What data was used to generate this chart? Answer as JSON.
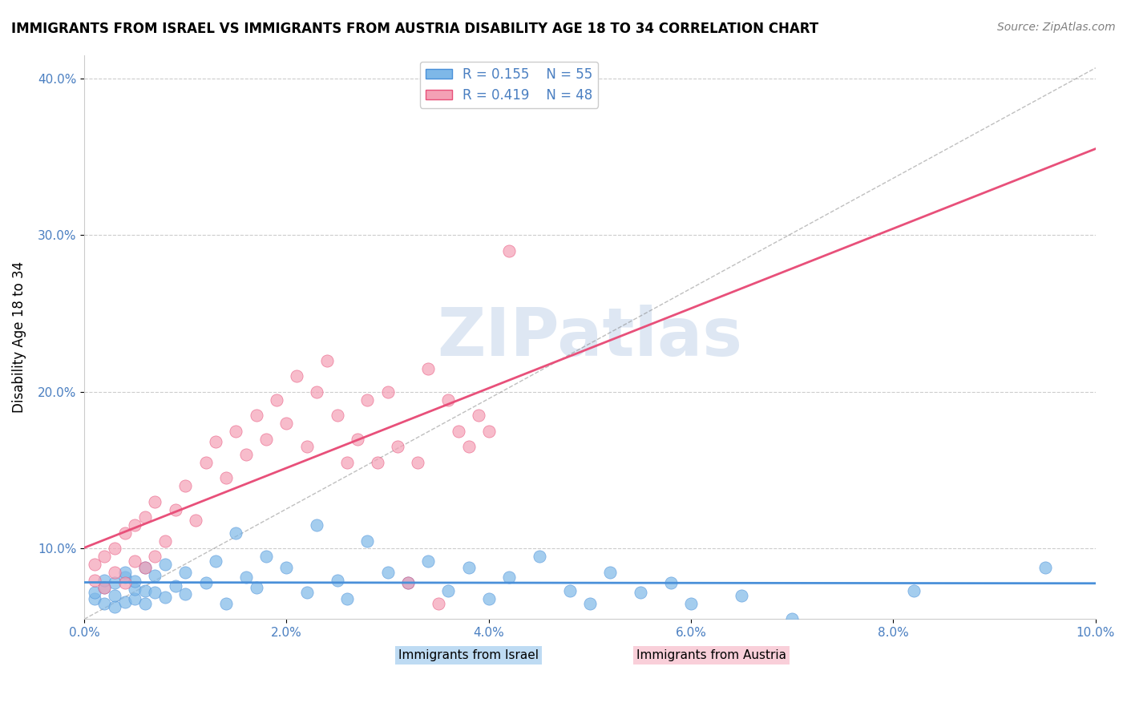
{
  "title": "IMMIGRANTS FROM ISRAEL VS IMMIGRANTS FROM AUSTRIA DISABILITY AGE 18 TO 34 CORRELATION CHART",
  "source": "Source: ZipAtlas.com",
  "xlabel_bottom": "",
  "ylabel": "Disability Age 18 to 34",
  "xlim": [
    0.0,
    0.1
  ],
  "ylim": [
    0.055,
    0.415
  ],
  "xticks": [
    0.0,
    0.02,
    0.04,
    0.06,
    0.08,
    0.1
  ],
  "yticks": [
    0.06,
    0.1,
    0.2,
    0.3,
    0.4
  ],
  "xtick_labels": [
    "0.0%",
    "2.0%",
    "4.0%",
    "6.0%",
    "8.0%",
    "10.0%"
  ],
  "ytick_labels": [
    "",
    "10.0%",
    "20.0%",
    "30.0%",
    "40.0%"
  ],
  "legend_r_israel": "R = 0.155",
  "legend_n_israel": "N = 55",
  "legend_r_austria": "R = 0.419",
  "legend_n_austria": "N = 48",
  "color_israel": "#7EB8E8",
  "color_austria": "#F4A0B5",
  "color_reg_israel": "#4A90D9",
  "color_reg_austria": "#E8507A",
  "color_text": "#4A7FC1",
  "watermark": "ZIPatlas",
  "watermark_color": "#C8D8EC",
  "israel_x": [
    0.001,
    0.001,
    0.002,
    0.002,
    0.002,
    0.003,
    0.003,
    0.003,
    0.004,
    0.004,
    0.004,
    0.005,
    0.005,
    0.005,
    0.006,
    0.006,
    0.006,
    0.007,
    0.007,
    0.008,
    0.008,
    0.009,
    0.01,
    0.01,
    0.012,
    0.013,
    0.014,
    0.015,
    0.016,
    0.017,
    0.018,
    0.02,
    0.022,
    0.023,
    0.025,
    0.026,
    0.028,
    0.03,
    0.032,
    0.034,
    0.036,
    0.038,
    0.04,
    0.042,
    0.045,
    0.048,
    0.05,
    0.052,
    0.055,
    0.058,
    0.06,
    0.065,
    0.07,
    0.082,
    0.095
  ],
  "israel_y": [
    0.068,
    0.072,
    0.065,
    0.075,
    0.08,
    0.063,
    0.07,
    0.078,
    0.066,
    0.082,
    0.085,
    0.068,
    0.074,
    0.079,
    0.065,
    0.073,
    0.088,
    0.072,
    0.083,
    0.069,
    0.09,
    0.076,
    0.071,
    0.085,
    0.078,
    0.092,
    0.065,
    0.11,
    0.082,
    0.075,
    0.095,
    0.088,
    0.072,
    0.115,
    0.08,
    0.068,
    0.105,
    0.085,
    0.078,
    0.092,
    0.073,
    0.088,
    0.068,
    0.082,
    0.095,
    0.073,
    0.065,
    0.085,
    0.072,
    0.078,
    0.065,
    0.07,
    0.055,
    0.073,
    0.088
  ],
  "austria_x": [
    0.001,
    0.001,
    0.002,
    0.002,
    0.003,
    0.003,
    0.004,
    0.004,
    0.005,
    0.005,
    0.006,
    0.006,
    0.007,
    0.007,
    0.008,
    0.009,
    0.01,
    0.011,
    0.012,
    0.013,
    0.014,
    0.015,
    0.016,
    0.017,
    0.018,
    0.019,
    0.02,
    0.021,
    0.022,
    0.023,
    0.024,
    0.025,
    0.026,
    0.027,
    0.028,
    0.029,
    0.03,
    0.031,
    0.032,
    0.033,
    0.034,
    0.035,
    0.036,
    0.037,
    0.038,
    0.039,
    0.04,
    0.042
  ],
  "austria_y": [
    0.08,
    0.09,
    0.075,
    0.095,
    0.085,
    0.1,
    0.078,
    0.11,
    0.092,
    0.115,
    0.088,
    0.12,
    0.095,
    0.13,
    0.105,
    0.125,
    0.14,
    0.118,
    0.155,
    0.168,
    0.145,
    0.175,
    0.16,
    0.185,
    0.17,
    0.195,
    0.18,
    0.21,
    0.165,
    0.2,
    0.22,
    0.185,
    0.155,
    0.17,
    0.195,
    0.155,
    0.2,
    0.165,
    0.078,
    0.155,
    0.215,
    0.065,
    0.195,
    0.175,
    0.165,
    0.185,
    0.175,
    0.29
  ]
}
